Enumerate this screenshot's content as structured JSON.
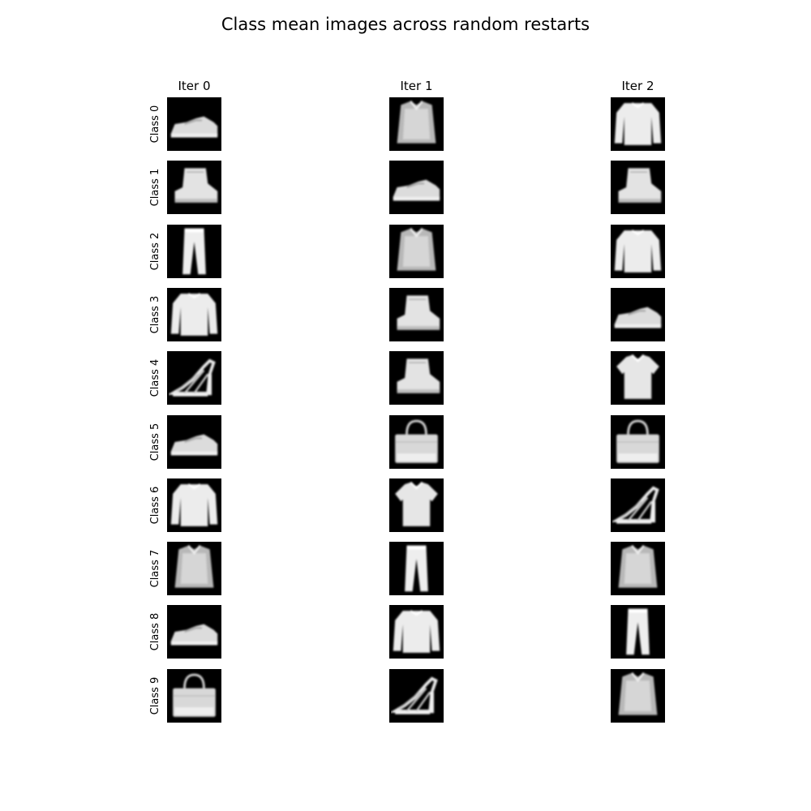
{
  "title": "Class mean images across random restarts",
  "chart_data": {
    "type": "image-grid",
    "title": "Class mean images across random restarts",
    "columns": [
      "Iter 0",
      "Iter 1",
      "Iter 2"
    ],
    "rows": [
      "Class 0",
      "Class 1",
      "Class 2",
      "Class 3",
      "Class 4",
      "Class 5",
      "Class 6",
      "Class 7",
      "Class 8",
      "Class 9"
    ],
    "colormap": "gray",
    "cells": [
      [
        "sneaker",
        "shirt",
        "pullover"
      ],
      [
        "ankle-boot",
        "sneaker",
        "ankle-boot"
      ],
      [
        "trouser",
        "shirt",
        "pullover"
      ],
      [
        "pullover",
        "ankle-boot",
        "sneaker"
      ],
      [
        "sandal",
        "ankle-boot",
        "tshirt"
      ],
      [
        "sneaker",
        "bag",
        "bag"
      ],
      [
        "pullover",
        "tshirt",
        "sandal"
      ],
      [
        "shirt",
        "trouser",
        "shirt"
      ],
      [
        "sneaker",
        "pullover",
        "trouser"
      ],
      [
        "bag",
        "sandal",
        "shirt"
      ]
    ]
  }
}
